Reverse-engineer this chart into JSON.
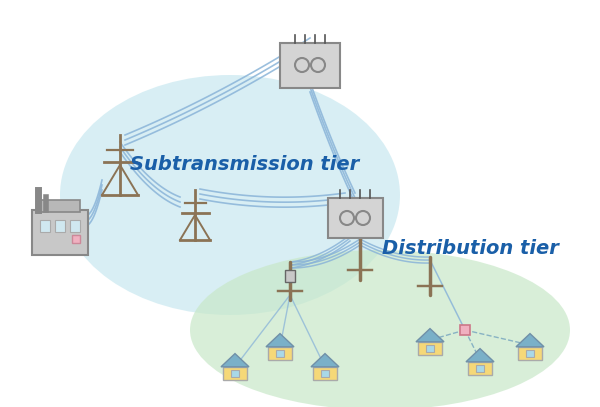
{
  "title": "",
  "subtransmission_label": "Subtransmission tier",
  "distribution_label": "Distribution tier",
  "subtransmission_color": "#c8e8f0",
  "distribution_color": "#c8e8c8",
  "line_color": "#7ab0d4",
  "wire_color": "#8ab4d8",
  "pole_color": "#8b7355",
  "building_color": "#d0d0d0",
  "house_wall_color": "#f5d878",
  "house_roof_color": "#7ab0c8",
  "substation_color": "#c8c8c8",
  "substation_border": "#888888",
  "label_subtrans_color": "#1a5fa8",
  "label_distrib_color": "#1a5fa8",
  "bg_color": "#ffffff"
}
